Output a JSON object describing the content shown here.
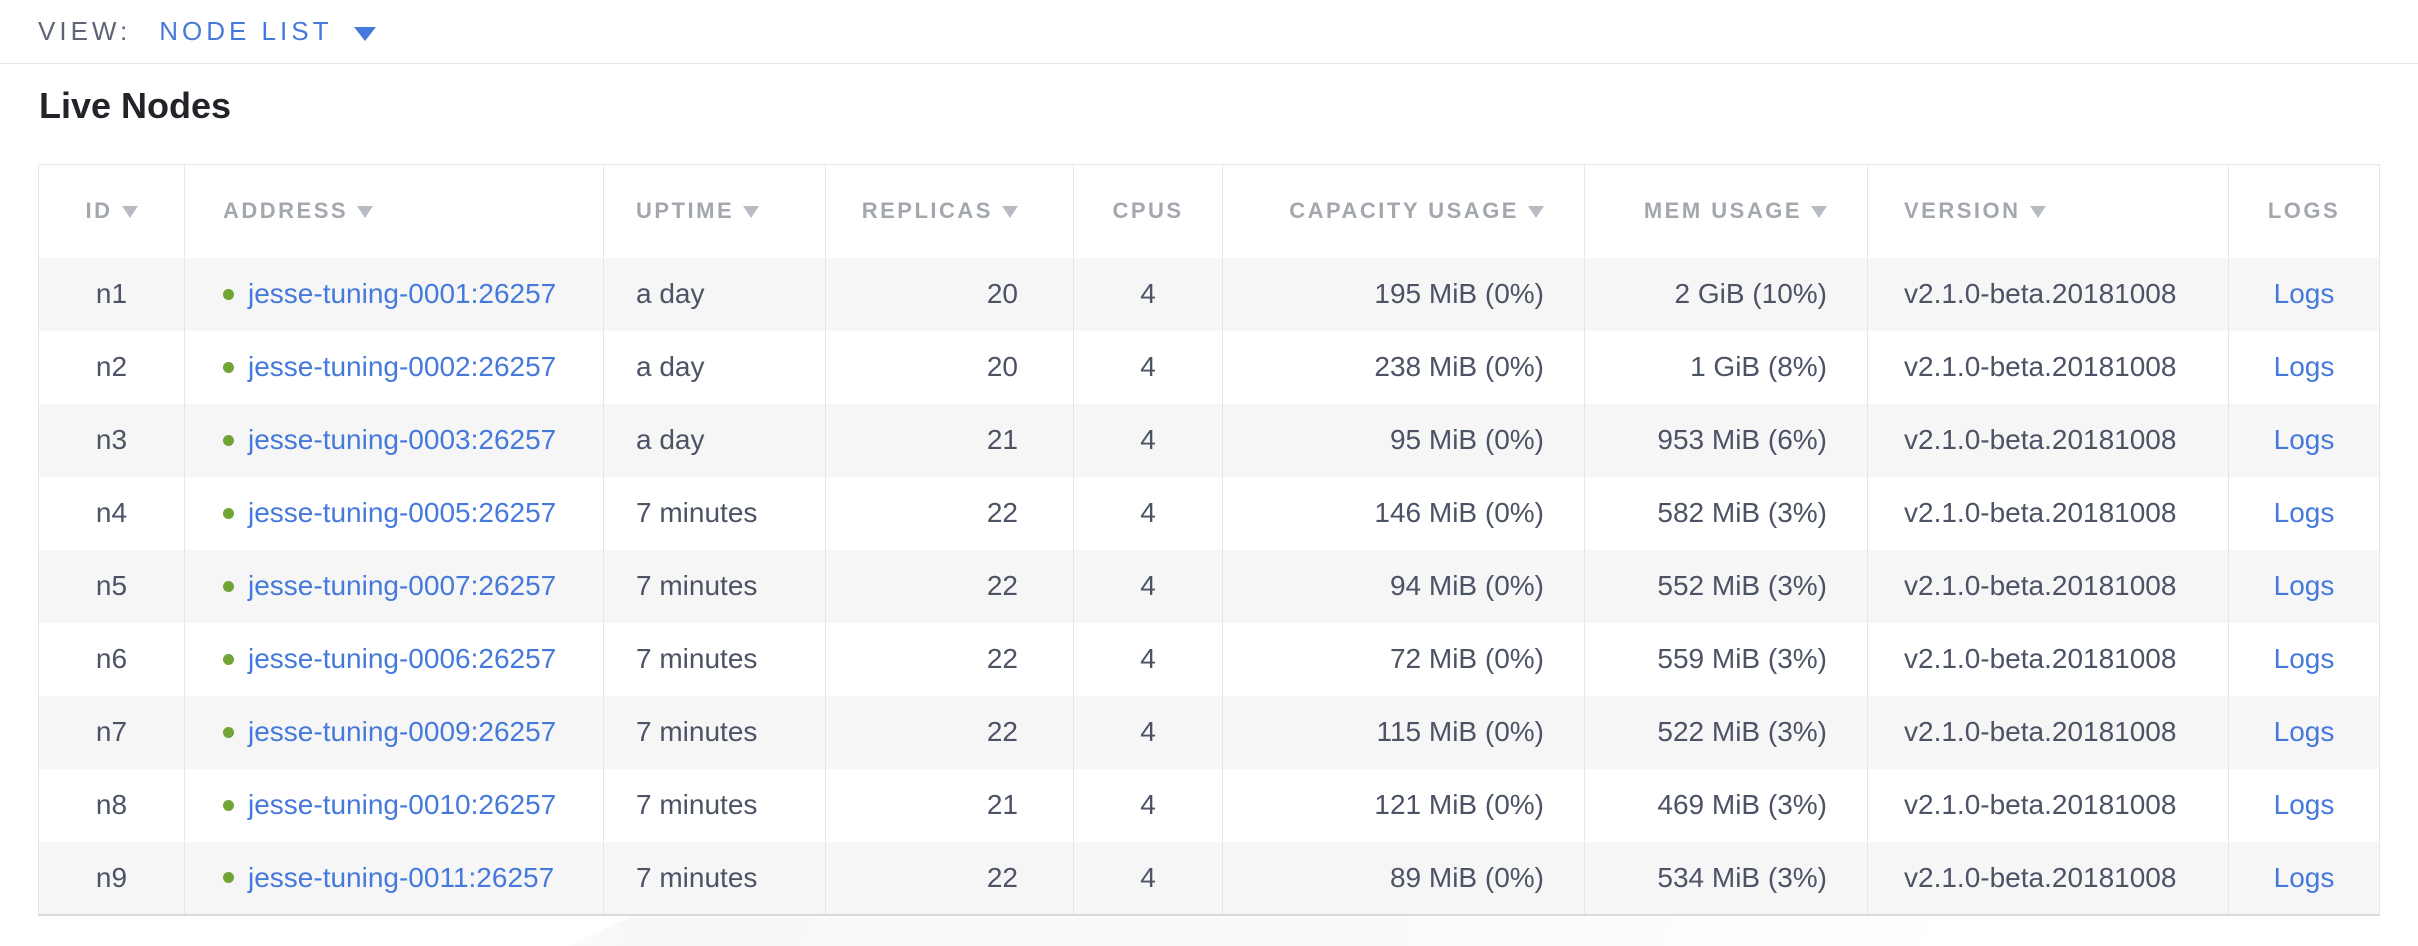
{
  "topbar": {
    "view_label": "VIEW:",
    "view_value": "NODE LIST"
  },
  "section": {
    "title": "Live Nodes"
  },
  "icons": {
    "view_dropdown": "caret-down",
    "column_sort": "caret-down",
    "node_status": "green-dot"
  },
  "colors": {
    "link_blue": "#4579db",
    "status_green": "#71a436",
    "header_gray": "#a3a7ae",
    "cell_text": "#4c5365",
    "row_stripe": "#f6f6f7",
    "table_border": "#e6e6e8"
  },
  "table": {
    "logs_label": "Logs",
    "columns": [
      {
        "key": "id",
        "label": "ID",
        "sortable": true
      },
      {
        "key": "address",
        "label": "ADDRESS",
        "sortable": true
      },
      {
        "key": "uptime",
        "label": "UPTIME",
        "sortable": true
      },
      {
        "key": "replicas",
        "label": "REPLICAS",
        "sortable": true
      },
      {
        "key": "cpus",
        "label": "CPUS",
        "sortable": false
      },
      {
        "key": "capacity",
        "label": "CAPACITY USAGE",
        "sortable": true
      },
      {
        "key": "mem",
        "label": "MEM USAGE",
        "sortable": true
      },
      {
        "key": "version",
        "label": "VERSION",
        "sortable": true
      },
      {
        "key": "logs",
        "label": "LOGS",
        "sortable": false
      }
    ],
    "rows": [
      {
        "id": "n1",
        "status": "healthy",
        "address": "jesse-tuning-0001:26257",
        "uptime": "a day",
        "replicas": "20",
        "cpus": "4",
        "capacity": "195 MiB (0%)",
        "mem": "2 GiB (10%)",
        "version": "v2.1.0-beta.20181008"
      },
      {
        "id": "n2",
        "status": "healthy",
        "address": "jesse-tuning-0002:26257",
        "uptime": "a day",
        "replicas": "20",
        "cpus": "4",
        "capacity": "238 MiB (0%)",
        "mem": "1 GiB (8%)",
        "version": "v2.1.0-beta.20181008"
      },
      {
        "id": "n3",
        "status": "healthy",
        "address": "jesse-tuning-0003:26257",
        "uptime": "a day",
        "replicas": "21",
        "cpus": "4",
        "capacity": "95 MiB (0%)",
        "mem": "953 MiB (6%)",
        "version": "v2.1.0-beta.20181008"
      },
      {
        "id": "n4",
        "status": "healthy",
        "address": "jesse-tuning-0005:26257",
        "uptime": "7 minutes",
        "replicas": "22",
        "cpus": "4",
        "capacity": "146 MiB (0%)",
        "mem": "582 MiB (3%)",
        "version": "v2.1.0-beta.20181008"
      },
      {
        "id": "n5",
        "status": "healthy",
        "address": "jesse-tuning-0007:26257",
        "uptime": "7 minutes",
        "replicas": "22",
        "cpus": "4",
        "capacity": "94 MiB (0%)",
        "mem": "552 MiB (3%)",
        "version": "v2.1.0-beta.20181008"
      },
      {
        "id": "n6",
        "status": "healthy",
        "address": "jesse-tuning-0006:26257",
        "uptime": "7 minutes",
        "replicas": "22",
        "cpus": "4",
        "capacity": "72 MiB (0%)",
        "mem": "559 MiB (3%)",
        "version": "v2.1.0-beta.20181008"
      },
      {
        "id": "n7",
        "status": "healthy",
        "address": "jesse-tuning-0009:26257",
        "uptime": "7 minutes",
        "replicas": "22",
        "cpus": "4",
        "capacity": "115 MiB (0%)",
        "mem": "522 MiB (3%)",
        "version": "v2.1.0-beta.20181008"
      },
      {
        "id": "n8",
        "status": "healthy",
        "address": "jesse-tuning-0010:26257",
        "uptime": "7 minutes",
        "replicas": "21",
        "cpus": "4",
        "capacity": "121 MiB (0%)",
        "mem": "469 MiB (3%)",
        "version": "v2.1.0-beta.20181008"
      },
      {
        "id": "n9",
        "status": "healthy",
        "address": "jesse-tuning-0011:26257",
        "uptime": "7 minutes",
        "replicas": "22",
        "cpus": "4",
        "capacity": "89 MiB (0%)",
        "mem": "534 MiB (3%)",
        "version": "v2.1.0-beta.20181008"
      }
    ]
  }
}
